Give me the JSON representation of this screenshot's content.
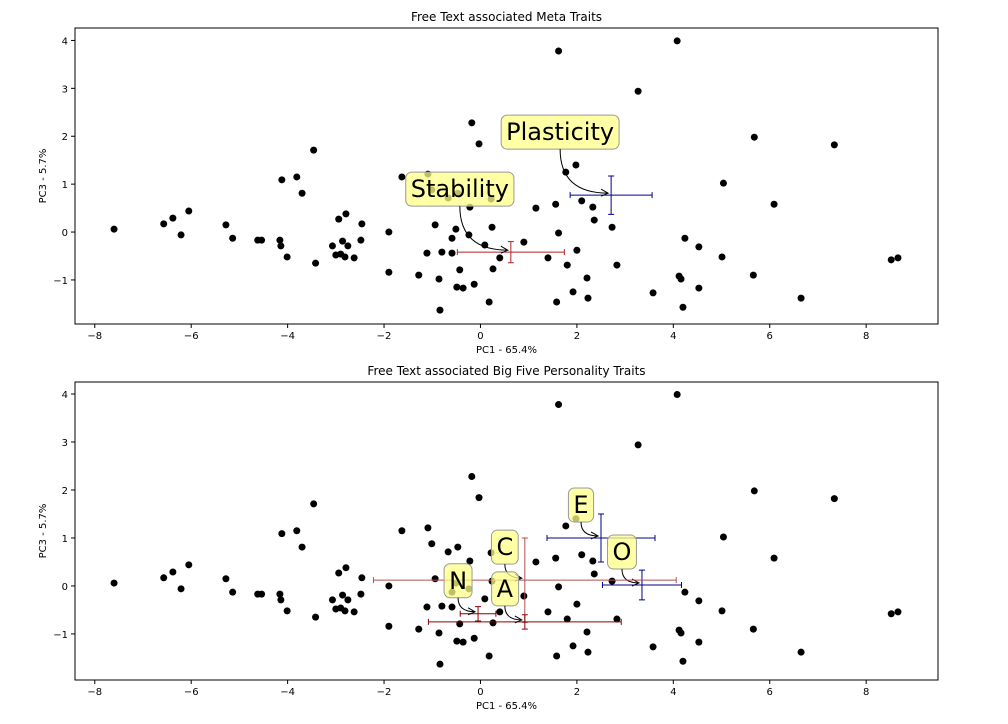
{
  "chart_data": [
    {
      "type": "scatter",
      "title": "Free Text associated Meta Traits",
      "x_label": "PC1 - 65.4%",
      "y_label": "PC3 - 5.7%",
      "color": "#000000",
      "x": [
        -7.6,
        -6.57,
        -6.38,
        -6.21,
        -6.05,
        -5.28,
        -5.14,
        -4.62,
        -4.54,
        -4.12,
        -4.16,
        -4.14,
        -4.01,
        -3.81,
        -3.7,
        -3.46,
        -3.42,
        -3.07,
        -3.0,
        -2.94,
        -2.9,
        -2.86,
        -2.79,
        -2.75,
        -2.81,
        -2.62,
        -2.46,
        -2.48,
        -1.9,
        -1.9,
        -1.63,
        -1.28,
        -1.09,
        -1.11,
        -1.01,
        -0.94,
        -0.86,
        -0.84,
        -0.8,
        -0.67,
        -0.59,
        -0.59,
        -0.51,
        -0.47,
        -0.49,
        -0.43,
        -0.36,
        -0.22,
        -0.24,
        -0.18,
        -0.13,
        -0.03,
        0.09,
        0.18,
        0.24,
        0.22,
        0.26,
        0.4,
        0.9,
        1.15,
        1.4,
        1.56,
        1.58,
        1.62,
        1.62,
        1.77,
        1.8,
        1.92,
        1.98,
        2.0,
        2.1,
        2.21,
        2.23,
        2.33,
        2.36,
        2.73,
        2.83,
        3.27,
        3.58,
        4.08,
        4.12,
        4.16,
        4.2,
        4.24,
        4.53,
        4.53,
        5.01,
        5.04,
        5.66,
        5.68,
        6.09,
        6.65,
        7.34,
        8.52,
        8.66
      ],
      "y": [
        0.06,
        0.17,
        0.29,
        -0.06,
        0.44,
        0.15,
        -0.13,
        -0.17,
        -0.17,
        1.09,
        -0.17,
        -0.29,
        -0.52,
        1.15,
        0.81,
        1.71,
        -0.65,
        -0.29,
        -0.48,
        0.27,
        -0.46,
        -0.19,
        0.38,
        -0.29,
        -0.52,
        -0.54,
        0.17,
        -0.17,
        0.0,
        -0.84,
        1.15,
        -0.9,
        1.21,
        -0.44,
        0.88,
        0.15,
        -0.98,
        -1.63,
        -0.42,
        0.71,
        -0.13,
        -0.44,
        0.06,
        0.81,
        -1.15,
        -0.79,
        -1.17,
        0.52,
        -0.06,
        2.28,
        -1.09,
        1.84,
        -0.27,
        -1.46,
        0.1,
        0.69,
        -0.77,
        -0.54,
        -0.21,
        0.5,
        -0.54,
        0.58,
        -1.46,
        3.78,
        -0.02,
        1.25,
        -0.69,
        -1.25,
        1.4,
        -0.38,
        0.65,
        -0.96,
        -1.38,
        0.52,
        0.25,
        0.1,
        -0.69,
        2.94,
        -1.27,
        3.99,
        -0.92,
        -0.98,
        -1.57,
        -0.13,
        -0.31,
        -1.17,
        -0.52,
        1.02,
        -0.9,
        1.98,
        0.58,
        -1.38,
        1.82,
        -0.58,
        -0.54
      ],
      "xlim": [
        -8.41,
        9.49
      ],
      "ylim": [
        -1.92,
        4.26
      ],
      "xticks": [
        {
          "value": -8,
          "label": "−8"
        },
        {
          "value": -6,
          "label": "−6"
        },
        {
          "value": -4,
          "label": "−4"
        },
        {
          "value": -2,
          "label": "−2"
        },
        0,
        2,
        4,
        6,
        8
      ],
      "yticks": [
        {
          "value": -1,
          "label": "−1"
        },
        0,
        1,
        2,
        3,
        4
      ],
      "annotations": [
        {
          "label": "Plasticity",
          "x": 2.71,
          "y": 0.77,
          "xerr": 0.85,
          "yerr": 0.4,
          "color": "#00008b",
          "text_color": "#0000cd"
        },
        {
          "label": "Stability",
          "x": 0.63,
          "y": -0.42,
          "xerr": 1.11,
          "yerr": 0.22,
          "color": "#b22222",
          "text_color": "#ee1111"
        }
      ]
    },
    {
      "type": "scatter",
      "title": "Free Text associated Big Five Personality Traits",
      "x_label": "PC1 - 65.4%",
      "y_label": "PC3 - 5.7%",
      "color": "#000000",
      "x": [
        -7.6,
        -6.57,
        -6.38,
        -6.21,
        -6.05,
        -5.28,
        -5.14,
        -4.62,
        -4.54,
        -4.12,
        -4.16,
        -4.14,
        -4.01,
        -3.81,
        -3.7,
        -3.46,
        -3.42,
        -3.07,
        -3.0,
        -2.94,
        -2.9,
        -2.86,
        -2.79,
        -2.75,
        -2.81,
        -2.62,
        -2.46,
        -2.48,
        -1.9,
        -1.9,
        -1.63,
        -1.28,
        -1.09,
        -1.11,
        -1.01,
        -0.94,
        -0.86,
        -0.84,
        -0.8,
        -0.67,
        -0.59,
        -0.59,
        -0.51,
        -0.47,
        -0.49,
        -0.43,
        -0.36,
        -0.22,
        -0.24,
        -0.18,
        -0.13,
        -0.03,
        0.09,
        0.18,
        0.24,
        0.22,
        0.26,
        0.4,
        0.9,
        1.15,
        1.4,
        1.56,
        1.58,
        1.62,
        1.62,
        1.77,
        1.8,
        1.92,
        1.98,
        2.0,
        2.1,
        2.21,
        2.23,
        2.33,
        2.36,
        2.73,
        2.83,
        3.27,
        3.58,
        4.08,
        4.12,
        4.16,
        4.2,
        4.24,
        4.53,
        4.53,
        5.01,
        5.04,
        5.66,
        5.68,
        6.09,
        6.65,
        7.34,
        8.52,
        8.66
      ],
      "y": [
        0.06,
        0.17,
        0.29,
        -0.06,
        0.44,
        0.15,
        -0.13,
        -0.17,
        -0.17,
        1.09,
        -0.17,
        -0.29,
        -0.52,
        1.15,
        0.81,
        1.71,
        -0.65,
        -0.29,
        -0.48,
        0.27,
        -0.46,
        -0.19,
        0.38,
        -0.29,
        -0.52,
        -0.54,
        0.17,
        -0.17,
        0.0,
        -0.84,
        1.15,
        -0.9,
        1.21,
        -0.44,
        0.88,
        0.15,
        -0.98,
        -1.63,
        -0.42,
        0.71,
        -0.13,
        -0.44,
        0.06,
        0.81,
        -1.15,
        -0.79,
        -1.17,
        0.52,
        -0.06,
        2.28,
        -1.09,
        1.84,
        -0.27,
        -1.46,
        0.1,
        0.69,
        -0.77,
        -0.54,
        -0.21,
        0.5,
        -0.54,
        0.58,
        -1.46,
        3.78,
        -0.02,
        1.25,
        -0.69,
        -1.25,
        1.4,
        -0.38,
        0.65,
        -0.96,
        -1.38,
        0.52,
        0.25,
        0.1,
        -0.69,
        2.94,
        -1.27,
        3.99,
        -0.92,
        -0.98,
        -1.57,
        -0.13,
        -0.31,
        -1.17,
        -0.52,
        1.02,
        -0.9,
        1.98,
        0.58,
        -1.38,
        1.82,
        -0.58,
        -0.54
      ],
      "xlim": [
        -8.41,
        9.49
      ],
      "ylim": [
        -1.96,
        4.25
      ],
      "xticks": [
        {
          "value": -8,
          "label": "−8"
        },
        {
          "value": -6,
          "label": "−6"
        },
        {
          "value": -4,
          "label": "−4"
        },
        {
          "value": -2,
          "label": "−2"
        },
        0,
        2,
        4,
        6,
        8
      ],
      "yticks": [
        {
          "value": -1,
          "label": "−1"
        },
        0,
        1,
        2,
        3,
        4
      ],
      "annotations": [
        {
          "label": "E",
          "x": 2.5,
          "y": 1.0,
          "xerr": 1.12,
          "yerr": 0.5,
          "color": "#00008b",
          "text_color": "#1a1a5e"
        },
        {
          "label": "O",
          "x": 3.35,
          "y": 0.02,
          "xerr": 0.82,
          "yerr": 0.31,
          "color": "#00008b",
          "text_color": "#1a1a5e"
        },
        {
          "label": "C",
          "x": 0.92,
          "y": 0.12,
          "xerr": 3.14,
          "yerr": 0.88,
          "color": "#b05050",
          "text_color": "#d2691e"
        },
        {
          "label": "A",
          "x": 0.92,
          "y": -0.75,
          "xerr": 2.0,
          "yerr": 0.15,
          "color": "#8b0000",
          "text_color": "#8b0000"
        },
        {
          "label": "N",
          "x": -0.05,
          "y": -0.58,
          "xerr": 0.37,
          "yerr": 0.15,
          "color": "#8b0000",
          "text_color": "#ee1111"
        }
      ]
    }
  ]
}
